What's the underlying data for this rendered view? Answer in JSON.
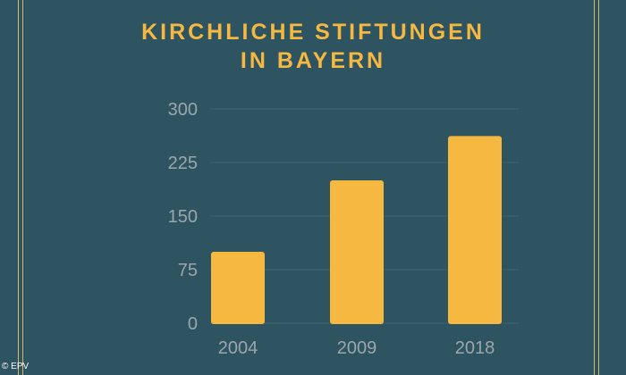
{
  "header": {
    "title_line1": "KIRCHLICHE STIFTUNGEN",
    "title_line2": "IN BAYERN"
  },
  "credit": "© EPV",
  "colors": {
    "background": "#2e5361",
    "accent": "#f5b841",
    "axis_text": "#9aa7ab",
    "grid": "#3f6573",
    "frame": "#d8b668"
  },
  "chart_data": {
    "type": "bar",
    "categories": [
      "2004",
      "2009",
      "2018"
    ],
    "values": [
      100,
      200,
      262
    ],
    "yticks": [
      0,
      75,
      150,
      225,
      300
    ],
    "ylim": [
      0,
      300
    ],
    "grid": true
  }
}
